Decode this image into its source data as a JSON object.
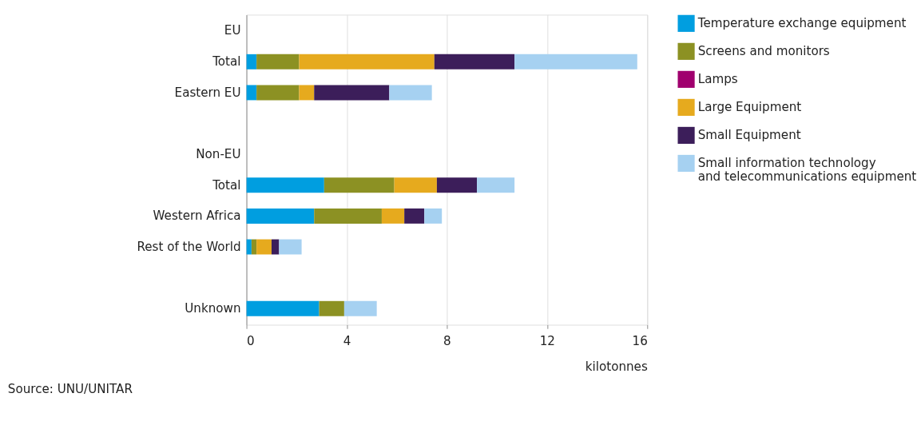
{
  "chart_data": {
    "type": "bar",
    "orientation": "horizontal",
    "stacked": true,
    "categories": [
      "EU",
      "Total",
      "Eastern EU",
      null,
      "Non-EU",
      "Total",
      "Western Africa",
      "Rest of the World",
      null,
      "Unknown"
    ],
    "series": [
      {
        "name": "Temperature exchange equipment",
        "color": "#009ee0",
        "values": [
          null,
          0.4,
          0.4,
          null,
          null,
          3.1,
          2.7,
          0.2,
          null,
          2.9
        ]
      },
      {
        "name": "Screens and monitors",
        "color": "#8c9123",
        "values": [
          null,
          1.7,
          1.7,
          null,
          null,
          2.8,
          2.7,
          0.2,
          null,
          1.0
        ]
      },
      {
        "name": "Lamps",
        "color": "#a0006e",
        "values": [
          null,
          0,
          0,
          null,
          null,
          0,
          0,
          0,
          null,
          0
        ]
      },
      {
        "name": "Large Equipment",
        "color": "#e6aa1e",
        "values": [
          null,
          5.4,
          0.6,
          null,
          null,
          1.7,
          0.9,
          0.6,
          null,
          0
        ]
      },
      {
        "name": "Small Equipment",
        "color": "#3c1e5a",
        "values": [
          null,
          3.2,
          3.0,
          null,
          null,
          1.6,
          0.8,
          0.3,
          null,
          0
        ]
      },
      {
        "name": "Small information technology and telecommunications equipment",
        "color": "#a6d1f1",
        "values": [
          null,
          4.9,
          1.7,
          null,
          null,
          1.5,
          0.7,
          0.9,
          null,
          1.3
        ]
      }
    ],
    "xlabel": "kilotonnes",
    "xlim": [
      0,
      16
    ],
    "xticks": [
      0,
      4,
      8,
      12,
      16
    ],
    "grid": "x",
    "legend": "top right",
    "annotations": [
      "Source: UNU/UNITAR"
    ]
  }
}
